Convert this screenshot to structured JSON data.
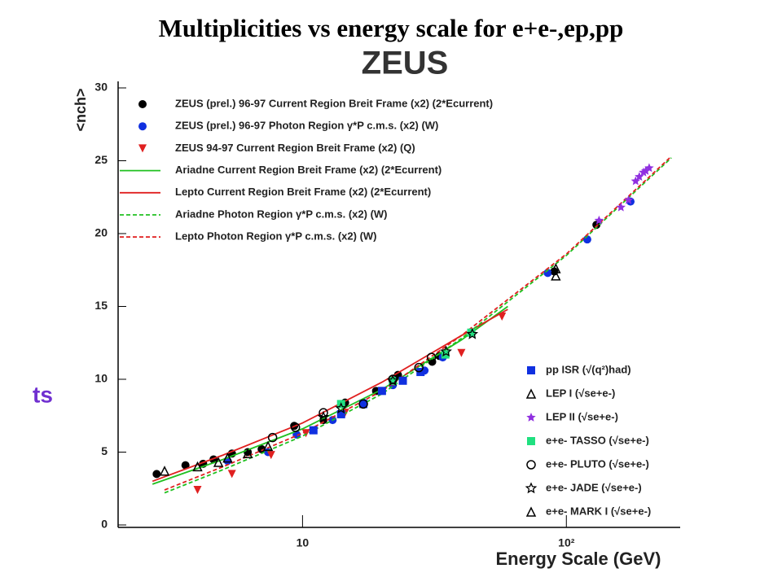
{
  "chart_data": {
    "type": "scatter",
    "title": "Multiplicities vs energy scale for e+e-,ep,pp",
    "subtitle": "ZEUS",
    "annotation": "ts",
    "xlabel": "Energy Scale (GeV)",
    "ylabel": "<nch>",
    "xscale": "log",
    "xlim": [
      2,
      270
    ],
    "ylim": [
      0,
      30
    ],
    "xticks": [
      10,
      {
        "value": 100,
        "label": "10²"
      }
    ],
    "yticks": [
      0,
      5,
      10,
      15,
      20,
      25,
      30
    ],
    "series": [
      {
        "name": "ZEUS (prel.) 96-97 Current Region Breit Frame (x2) (2*Ecurrent)",
        "color": "#000000",
        "marker": "circle",
        "legend": "upper left",
        "x": [
          2.8,
          3.6,
          4.2,
          4.6,
          5.4,
          6.2,
          7.0,
          9.3,
          12,
          14.5,
          19,
          23,
          31,
          33,
          90,
          130
        ],
        "values": [
          3.5,
          4.1,
          4.2,
          4.5,
          4.9,
          5.0,
          5.2,
          6.8,
          7.2,
          8.4,
          9.2,
          10.3,
          11.2,
          11.6,
          17.4,
          20.6
        ]
      },
      {
        "name": "ZEUS (prel.) 96-97 Photon Region γ*P c.m.s. (x2) (W)",
        "color": "#1030e0",
        "marker": "circle",
        "legend": "upper left",
        "x": [
          5.2,
          7.4,
          9.5,
          13,
          17,
          22,
          29,
          34,
          85,
          120,
          175
        ],
        "values": [
          4.4,
          5.0,
          6.2,
          7.2,
          8.4,
          9.6,
          10.6,
          11.5,
          17.3,
          19.6,
          22.2
        ]
      },
      {
        "name": "ZEUS 94-97 Current Region Breit Frame (x2) (Q)",
        "color": "#e02020",
        "marker": "triangle-down",
        "legend": "upper left",
        "x": [
          4.0,
          5.4,
          7.6,
          10.3,
          14.5,
          22,
          40,
          57
        ],
        "values": [
          2.4,
          3.5,
          4.8,
          6.3,
          7.7,
          9.8,
          11.8,
          14.3
        ]
      },
      {
        "name": "Ariadne Current Region Breit Frame (x2) (2*Ecurrent)",
        "color": "#20c020",
        "line": "solid",
        "legend": "upper left",
        "x": [
          2.7,
          5,
          10,
          20,
          40,
          60
        ],
        "values": [
          2.8,
          4.5,
          6.6,
          9.3,
          12.7,
          15.0
        ]
      },
      {
        "name": "Lepto Current Region Breit Frame (x2) (2*Ecurrent)",
        "color": "#e02020",
        "line": "solid",
        "legend": "upper left",
        "x": [
          2.7,
          5,
          10,
          20,
          40,
          60
        ],
        "values": [
          3.0,
          4.8,
          7.0,
          9.8,
          13.0,
          14.8
        ]
      },
      {
        "name": "Ariadne Photon Region γ*P c.m.s. (x2) (W)",
        "color": "#20c020",
        "line": "dashed",
        "legend": "upper left",
        "x": [
          3,
          5,
          10,
          20,
          40,
          100,
          250
        ],
        "values": [
          2.2,
          3.8,
          6.1,
          9.0,
          12.8,
          18.5,
          25.2
        ]
      },
      {
        "name": "Lepto Photon Region γ*P c.m.s. (x2)  (W)",
        "color": "#e02020",
        "line": "dashed",
        "legend": "upper left",
        "x": [
          3,
          5,
          10,
          20,
          40,
          100,
          250
        ],
        "values": [
          2.4,
          4.0,
          6.3,
          9.2,
          13.0,
          18.6,
          25.3
        ]
      },
      {
        "name": "pp ISR (√(q²)had)",
        "color": "#1030e0",
        "marker": "square",
        "legend": "lower right",
        "x": [
          11,
          14,
          17,
          20,
          24,
          28
        ],
        "values": [
          6.5,
          7.6,
          8.3,
          9.2,
          9.9,
          10.5
        ]
      },
      {
        "name": "LEP I (√se+e-)",
        "color": "#000000",
        "marker": "triangle-open",
        "legend": "lower right",
        "x": [
          91.2,
          91.2
        ],
        "values": [
          17.6,
          17.1
        ]
      },
      {
        "name": "LEP II (√se+e-)",
        "color": "#9030e0",
        "marker": "star",
        "legend": "lower right",
        "x": [
          133,
          161,
          172,
          183,
          189,
          196,
          200,
          206
        ],
        "values": [
          20.9,
          21.8,
          22.3,
          23.6,
          23.9,
          24.2,
          24.3,
          24.5
        ]
      },
      {
        "name": "e+e- TASSO (√se+e-)",
        "color": "#20e080",
        "marker": "square",
        "legend": "lower right",
        "x": [
          14,
          22,
          34.8,
          43.6
        ],
        "values": [
          8.3,
          9.9,
          11.7,
          13.2
        ]
      },
      {
        "name": "e+e- PLUTO (√se+e-)",
        "color": "#000000",
        "marker": "circle-open",
        "legend": "lower right",
        "x": [
          7.7,
          9.4,
          12,
          17,
          22,
          27.6,
          30.8
        ],
        "values": [
          6.0,
          6.7,
          7.7,
          8.3,
          10.0,
          10.8,
          11.5
        ]
      },
      {
        "name": "e+e- JADE (√se+e-)",
        "color": "#000000",
        "marker": "star-open",
        "legend": "lower right",
        "x": [
          12,
          14,
          22,
          35,
          44
        ],
        "values": [
          7.4,
          8.0,
          9.9,
          11.9,
          13.1
        ]
      },
      {
        "name": "e+e- MARK I (√se+e-)",
        "color": "#000000",
        "marker": "triangle-open",
        "legend": "lower right",
        "x": [
          3,
          4,
          4.8,
          5.2,
          6.2,
          7.4
        ],
        "values": [
          3.7,
          4.0,
          4.3,
          4.6,
          4.9,
          5.4
        ]
      }
    ]
  }
}
